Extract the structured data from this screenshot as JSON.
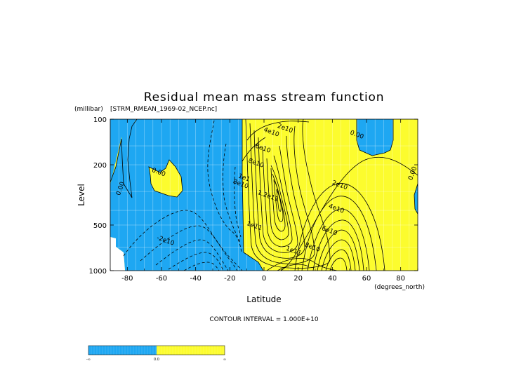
{
  "chart_data": {
    "type": "contour",
    "title": "Residual mean mass stream function",
    "subtitle": "[STRM_RMEAN_1969-02_NCEP.nc]",
    "xlabel": "Latitude",
    "x_units": "(degrees_north)",
    "ylabel": "Level",
    "y_units": "(millibar)",
    "xlim": [
      -90,
      90
    ],
    "ylim": [
      1000,
      100
    ],
    "y_scale": "log",
    "x_ticks": [
      "-80",
      "-60",
      "-40",
      "-20",
      "0",
      "20",
      "40",
      "60",
      "80"
    ],
    "x_tick_values": [
      -80,
      -60,
      -40,
      -20,
      0,
      20,
      40,
      60,
      80
    ],
    "y_ticks": [
      "100",
      "200",
      "500",
      "1000"
    ],
    "y_tick_values": [
      100,
      200,
      500,
      1000
    ],
    "grid": true,
    "contour_interval_label": "CONTOUR INTERVAL = 1.000E+10",
    "fill_colors": {
      "negative": "#1ea7f2",
      "positive": "#fcfc2e"
    },
    "contour_labels": [
      {
        "text": "0.00",
        "lat": -83,
        "p": 290
      },
      {
        "text": "0.00",
        "lat": -62,
        "p": 230
      },
      {
        "text": "0.00",
        "lat": 54,
        "p": 130
      },
      {
        "text": "0.00",
        "lat": 88,
        "p": 230
      },
      {
        "text": "-2e10",
        "lat": -58,
        "p": 650
      },
      {
        "text": "4e10",
        "lat": 4,
        "p": 125
      },
      {
        "text": "2e10",
        "lat": 12,
        "p": 118
      },
      {
        "text": "6e10",
        "lat": -1,
        "p": 160
      },
      {
        "text": "8e10",
        "lat": -5,
        "p": 200
      },
      {
        "text": "1.2e11",
        "lat": 2,
        "p": 330
      },
      {
        "text": "1e11",
        "lat": -6,
        "p": 520
      },
      {
        "text": "1e1",
        "lat": -12,
        "p": 250
      },
      {
        "text": "8e10",
        "lat": -14,
        "p": 275
      },
      {
        "text": "2e10",
        "lat": 44,
        "p": 280
      },
      {
        "text": "4e10",
        "lat": 42,
        "p": 400
      },
      {
        "text": "6e10",
        "lat": 38,
        "p": 560
      },
      {
        "text": "8e10",
        "lat": 28,
        "p": 720
      },
      {
        "text": "1e11",
        "lat": 17,
        "p": 760
      }
    ]
  },
  "colorbar": {
    "labels": [
      "-∞",
      "0.0",
      "∞"
    ],
    "colors": [
      "#1ea7f2",
      "#fcfc2e"
    ]
  }
}
